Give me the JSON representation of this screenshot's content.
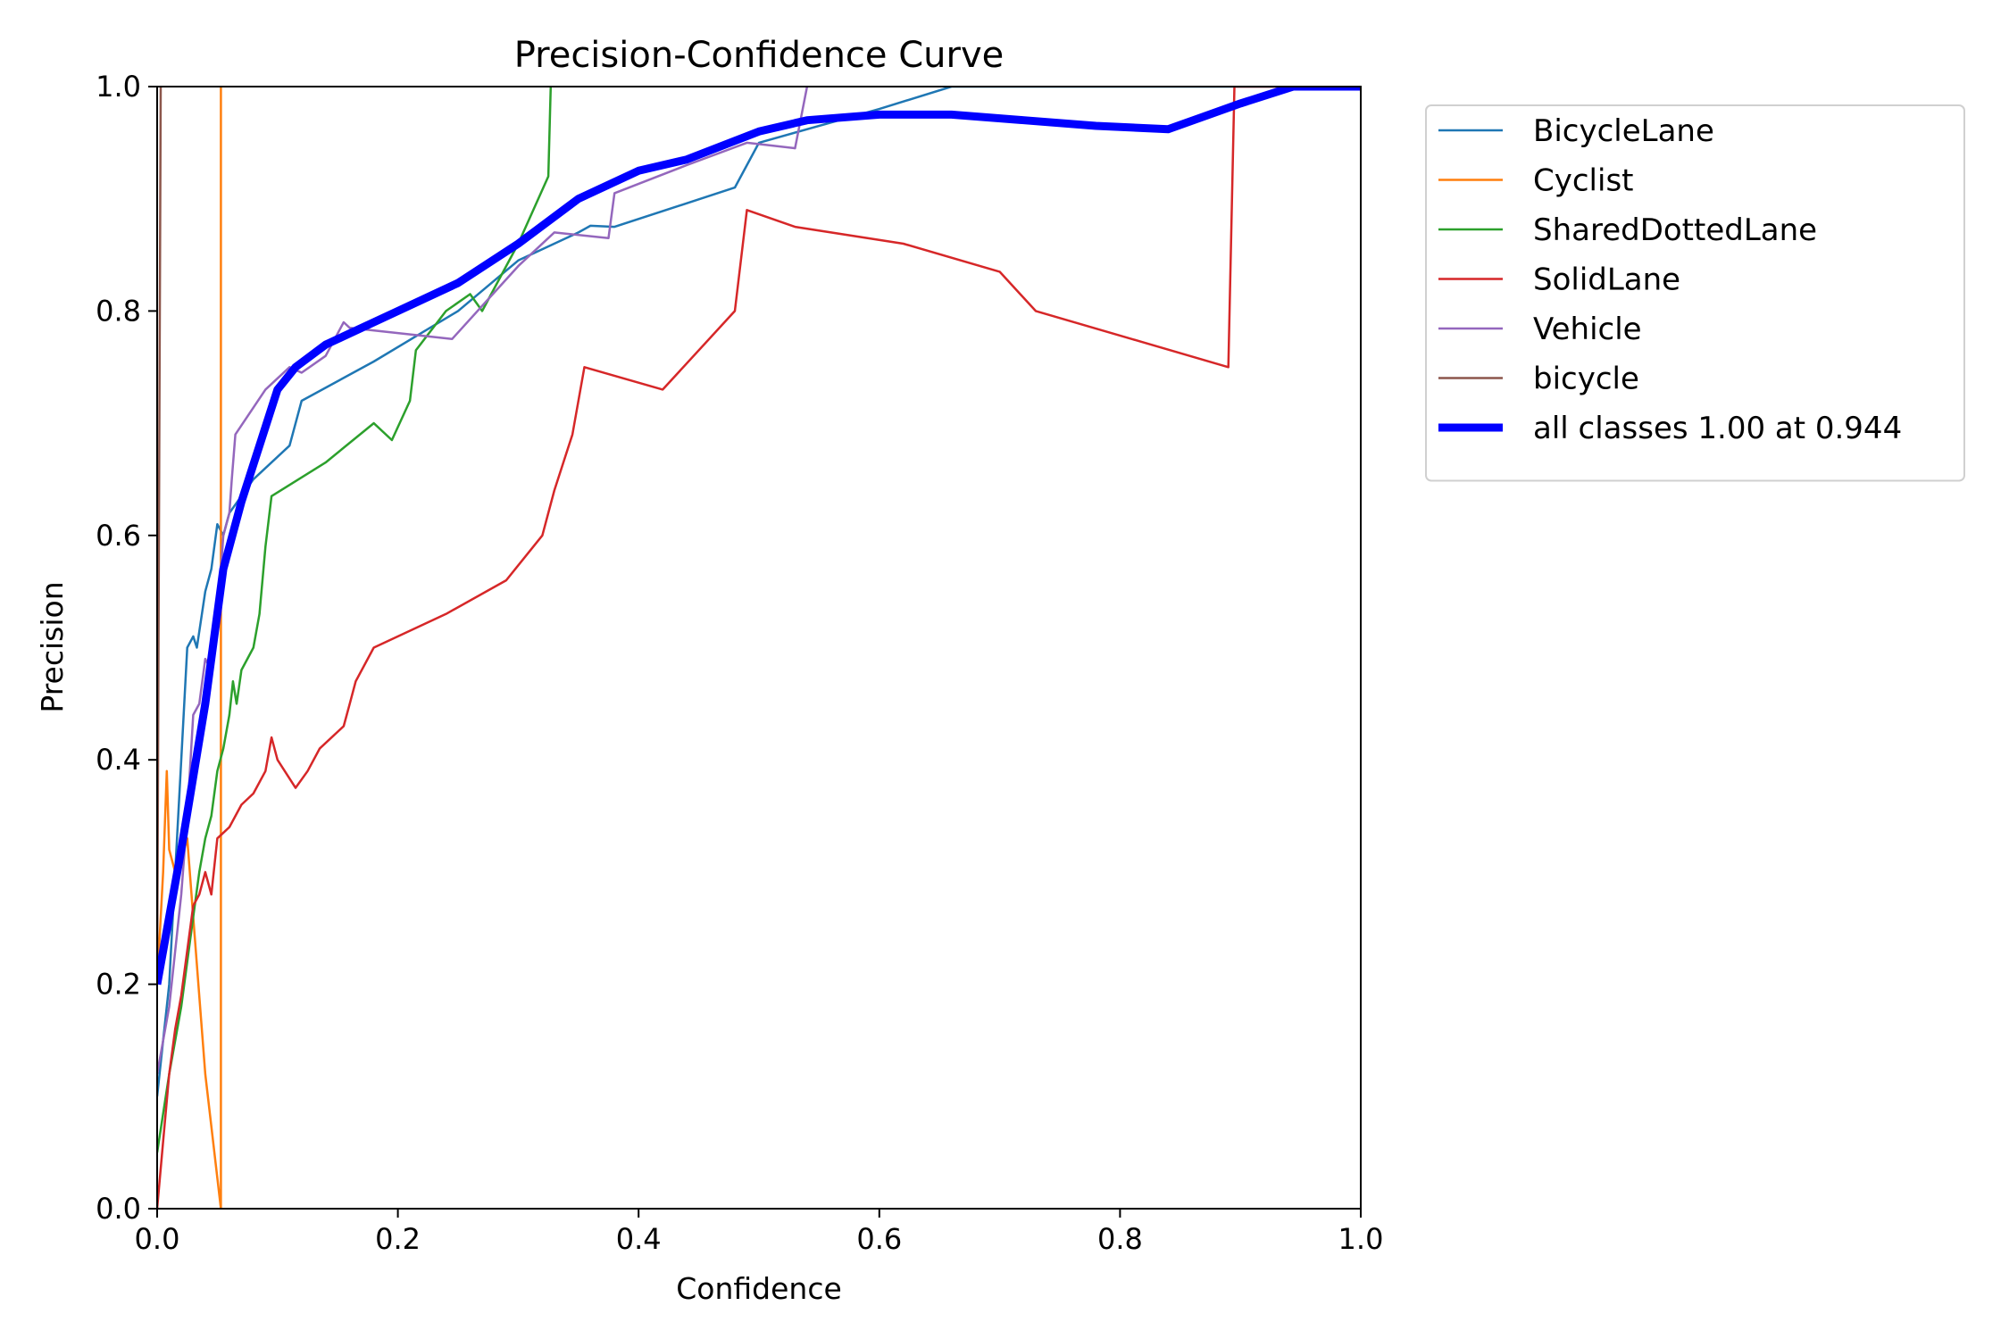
{
  "chart_data": {
    "type": "line",
    "title": "Precision-Confidence Curve",
    "xlabel": "Confidence",
    "ylabel": "Precision",
    "xlim": [
      0,
      1
    ],
    "ylim": [
      0,
      1
    ],
    "xticks": [
      "0.0",
      "0.2",
      "0.4",
      "0.6",
      "0.8",
      "1.0"
    ],
    "yticks": [
      "0.0",
      "0.2",
      "0.4",
      "0.6",
      "0.8",
      "1.0"
    ],
    "grid": false,
    "legend_position": "outside-top-right",
    "series": [
      {
        "name": "BicycleLane",
        "color": "#1f77b4",
        "width": "thin",
        "points": [
          [
            0.0,
            0.1
          ],
          [
            0.005,
            0.15
          ],
          [
            0.01,
            0.2
          ],
          [
            0.015,
            0.3
          ],
          [
            0.02,
            0.4
          ],
          [
            0.025,
            0.5
          ],
          [
            0.03,
            0.51
          ],
          [
            0.033,
            0.5
          ],
          [
            0.04,
            0.55
          ],
          [
            0.045,
            0.57
          ],
          [
            0.05,
            0.61
          ],
          [
            0.055,
            0.6
          ],
          [
            0.06,
            0.62
          ],
          [
            0.08,
            0.65
          ],
          [
            0.11,
            0.68
          ],
          [
            0.12,
            0.72
          ],
          [
            0.18,
            0.755
          ],
          [
            0.25,
            0.8
          ],
          [
            0.3,
            0.845
          ],
          [
            0.35,
            0.87
          ],
          [
            0.36,
            0.876
          ],
          [
            0.38,
            0.875
          ],
          [
            0.48,
            0.91
          ],
          [
            0.5,
            0.95
          ],
          [
            0.6,
            0.98
          ],
          [
            0.66,
            1.0
          ],
          [
            1.0,
            1.0
          ]
        ]
      },
      {
        "name": "Cyclist",
        "color": "#ff7f0e",
        "width": "thin",
        "points": [
          [
            0.0,
            0.2
          ],
          [
            0.005,
            0.3
          ],
          [
            0.008,
            0.39
          ],
          [
            0.01,
            0.32
          ],
          [
            0.015,
            0.3
          ],
          [
            0.02,
            0.31
          ],
          [
            0.025,
            0.33
          ],
          [
            0.03,
            0.26
          ],
          [
            0.04,
            0.12
          ],
          [
            0.053,
            0.0
          ],
          [
            0.053,
            1.0
          ]
        ]
      },
      {
        "name": "SharedDottedLane",
        "color": "#2ca02c",
        "width": "thin",
        "points": [
          [
            0.0,
            0.05
          ],
          [
            0.01,
            0.12
          ],
          [
            0.02,
            0.18
          ],
          [
            0.025,
            0.22
          ],
          [
            0.03,
            0.26
          ],
          [
            0.035,
            0.3
          ],
          [
            0.04,
            0.33
          ],
          [
            0.045,
            0.35
          ],
          [
            0.05,
            0.39
          ],
          [
            0.055,
            0.41
          ],
          [
            0.06,
            0.44
          ],
          [
            0.063,
            0.47
          ],
          [
            0.066,
            0.45
          ],
          [
            0.07,
            0.48
          ],
          [
            0.08,
            0.5
          ],
          [
            0.085,
            0.53
          ],
          [
            0.09,
            0.59
          ],
          [
            0.095,
            0.635
          ],
          [
            0.14,
            0.665
          ],
          [
            0.18,
            0.7
          ],
          [
            0.195,
            0.685
          ],
          [
            0.21,
            0.72
          ],
          [
            0.215,
            0.765
          ],
          [
            0.24,
            0.8
          ],
          [
            0.26,
            0.815
          ],
          [
            0.27,
            0.8
          ],
          [
            0.3,
            0.86
          ],
          [
            0.325,
            0.92
          ],
          [
            0.327,
            1.0
          ]
        ]
      },
      {
        "name": "SolidLane",
        "color": "#d62728",
        "width": "thin",
        "points": [
          [
            0.0,
            0.0
          ],
          [
            0.005,
            0.06
          ],
          [
            0.01,
            0.12
          ],
          [
            0.015,
            0.16
          ],
          [
            0.02,
            0.19
          ],
          [
            0.025,
            0.23
          ],
          [
            0.03,
            0.27
          ],
          [
            0.035,
            0.28
          ],
          [
            0.04,
            0.3
          ],
          [
            0.045,
            0.28
          ],
          [
            0.05,
            0.33
          ],
          [
            0.06,
            0.34
          ],
          [
            0.07,
            0.36
          ],
          [
            0.08,
            0.37
          ],
          [
            0.09,
            0.39
          ],
          [
            0.095,
            0.42
          ],
          [
            0.1,
            0.4
          ],
          [
            0.115,
            0.375
          ],
          [
            0.125,
            0.39
          ],
          [
            0.135,
            0.41
          ],
          [
            0.155,
            0.43
          ],
          [
            0.16,
            0.45
          ],
          [
            0.165,
            0.47
          ],
          [
            0.18,
            0.5
          ],
          [
            0.24,
            0.53
          ],
          [
            0.29,
            0.56
          ],
          [
            0.32,
            0.6
          ],
          [
            0.33,
            0.64
          ],
          [
            0.345,
            0.69
          ],
          [
            0.355,
            0.75
          ],
          [
            0.42,
            0.73
          ],
          [
            0.48,
            0.8
          ],
          [
            0.49,
            0.89
          ],
          [
            0.53,
            0.875
          ],
          [
            0.62,
            0.86
          ],
          [
            0.7,
            0.835
          ],
          [
            0.73,
            0.8
          ],
          [
            0.89,
            0.75
          ],
          [
            0.895,
            1.0
          ],
          [
            1.0,
            1.0
          ]
        ]
      },
      {
        "name": "Vehicle",
        "color": "#9467bd",
        "width": "thin",
        "points": [
          [
            0.0,
            0.12
          ],
          [
            0.01,
            0.18
          ],
          [
            0.02,
            0.28
          ],
          [
            0.025,
            0.35
          ],
          [
            0.03,
            0.44
          ],
          [
            0.035,
            0.45
          ],
          [
            0.04,
            0.49
          ],
          [
            0.045,
            0.48
          ],
          [
            0.05,
            0.52
          ],
          [
            0.055,
            0.6
          ],
          [
            0.06,
            0.62
          ],
          [
            0.062,
            0.65
          ],
          [
            0.065,
            0.69
          ],
          [
            0.09,
            0.73
          ],
          [
            0.11,
            0.75
          ],
          [
            0.12,
            0.745
          ],
          [
            0.14,
            0.76
          ],
          [
            0.155,
            0.79
          ],
          [
            0.16,
            0.785
          ],
          [
            0.245,
            0.775
          ],
          [
            0.3,
            0.84
          ],
          [
            0.33,
            0.87
          ],
          [
            0.375,
            0.865
          ],
          [
            0.38,
            0.905
          ],
          [
            0.44,
            0.93
          ],
          [
            0.49,
            0.95
          ],
          [
            0.53,
            0.945
          ],
          [
            0.54,
            1.0
          ]
        ]
      },
      {
        "name": "bicycle",
        "color": "#8c564b",
        "width": "thin",
        "points": [
          [
            0.0,
            0.2
          ],
          [
            0.003,
            1.0
          ],
          [
            0.004,
            1.0
          ]
        ]
      },
      {
        "name": "all classes 1.00 at 0.944",
        "color": "#0000ff",
        "width": "thick",
        "points": [
          [
            0.0,
            0.2
          ],
          [
            0.02,
            0.32
          ],
          [
            0.04,
            0.45
          ],
          [
            0.055,
            0.57
          ],
          [
            0.07,
            0.63
          ],
          [
            0.085,
            0.68
          ],
          [
            0.1,
            0.73
          ],
          [
            0.115,
            0.75
          ],
          [
            0.14,
            0.77
          ],
          [
            0.2,
            0.8
          ],
          [
            0.25,
            0.825
          ],
          [
            0.3,
            0.86
          ],
          [
            0.35,
            0.9
          ],
          [
            0.4,
            0.925
          ],
          [
            0.44,
            0.935
          ],
          [
            0.5,
            0.96
          ],
          [
            0.54,
            0.97
          ],
          [
            0.6,
            0.975
          ],
          [
            0.66,
            0.975
          ],
          [
            0.72,
            0.97
          ],
          [
            0.78,
            0.965
          ],
          [
            0.84,
            0.962
          ],
          [
            0.9,
            0.985
          ],
          [
            0.944,
            1.0
          ],
          [
            1.0,
            1.0
          ]
        ]
      }
    ]
  }
}
